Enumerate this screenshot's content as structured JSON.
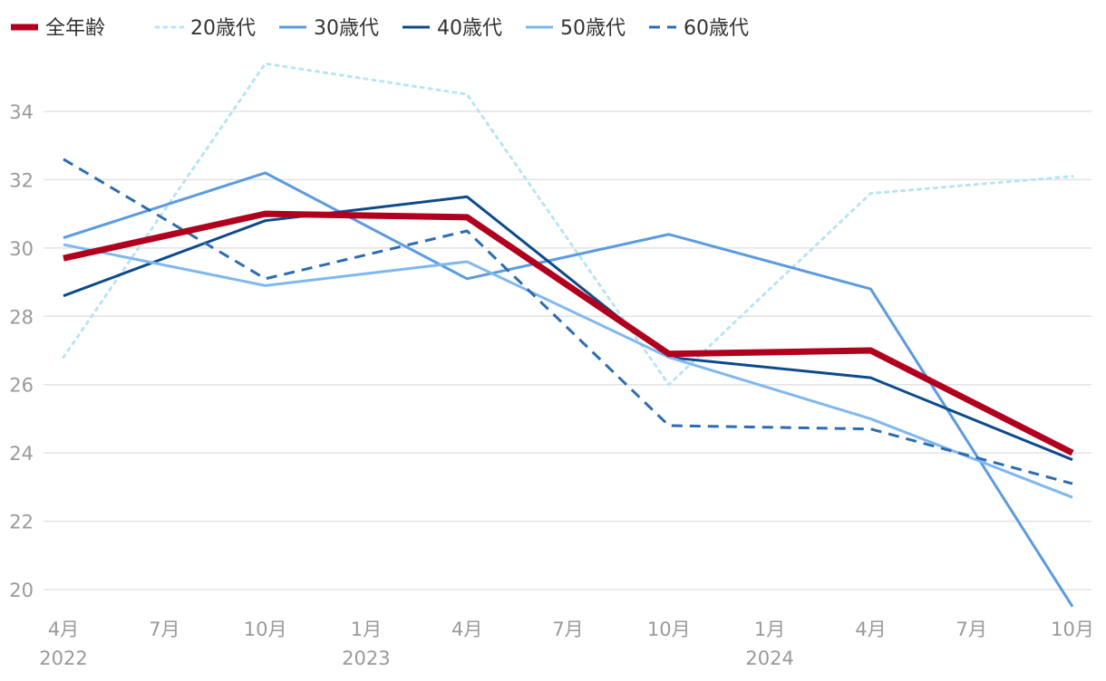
{
  "chart_data": {
    "type": "line",
    "title": "",
    "xlabel": "",
    "ylabel": "",
    "ylim": [
      19.5,
      35.5
    ],
    "grid": true,
    "legend_position": "top-left",
    "y_ticks": [
      20,
      22,
      24,
      26,
      28,
      30,
      32,
      34
    ],
    "x_ticks": [
      {
        "label": "4月",
        "year": "2022"
      },
      {
        "label": "7月",
        "year": ""
      },
      {
        "label": "10月",
        "year": ""
      },
      {
        "label": "1月",
        "year": "2023"
      },
      {
        "label": "4月",
        "year": ""
      },
      {
        "label": "7月",
        "year": ""
      },
      {
        "label": "10月",
        "year": ""
      },
      {
        "label": "1月",
        "year": "2024"
      },
      {
        "label": "4月",
        "year": ""
      },
      {
        "label": "7月",
        "year": ""
      },
      {
        "label": "10月",
        "year": ""
      }
    ],
    "x": [
      "2022-04",
      "2022-10",
      "2023-04",
      "2023-10",
      "2024-04",
      "2024-10"
    ],
    "series": [
      {
        "name": "全年齢",
        "values": [
          29.7,
          31.0,
          30.9,
          26.9,
          27.0,
          24.0
        ],
        "color": "#b0001e",
        "style": "solid",
        "width": 7
      },
      {
        "name": "20歳代",
        "values": [
          26.8,
          35.4,
          34.5,
          26.0,
          31.6,
          32.1
        ],
        "color": "#b8e4f5",
        "style": "dotted",
        "width": 3
      },
      {
        "name": "30歳代",
        "values": [
          30.3,
          32.2,
          29.1,
          30.4,
          28.8,
          19.5
        ],
        "color": "#5b9be0",
        "style": "solid",
        "width": 3
      },
      {
        "name": "40歳代",
        "values": [
          28.6,
          30.8,
          31.5,
          26.8,
          26.2,
          23.8
        ],
        "color": "#0d4a8c",
        "style": "solid",
        "width": 3
      },
      {
        "name": "50歳代",
        "values": [
          30.1,
          28.9,
          29.6,
          26.8,
          25.0,
          22.7
        ],
        "color": "#7fb8f0",
        "style": "solid",
        "width": 3
      },
      {
        "name": "60歳代",
        "values": [
          32.6,
          29.1,
          30.5,
          24.8,
          24.7,
          23.1
        ],
        "color": "#2d6cb0",
        "style": "dashed",
        "width": 3
      }
    ]
  }
}
